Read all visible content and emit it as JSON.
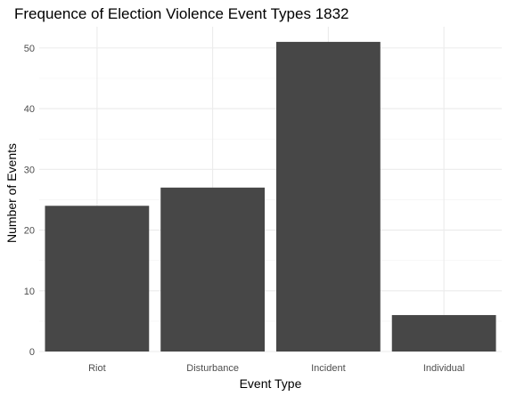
{
  "chart_data": {
    "type": "bar",
    "title": "Frequence of Election Violence Event Types 1832",
    "xlabel": "Event Type",
    "ylabel": "Number of Events",
    "categories": [
      "Riot",
      "Disturbance",
      "Incident",
      "Individual"
    ],
    "values": [
      24,
      27,
      51,
      6
    ],
    "ylim": [
      0,
      53.5
    ],
    "yticks": [
      0,
      10,
      20,
      30,
      40,
      50
    ],
    "bar_color": "#474747",
    "grid": true
  }
}
